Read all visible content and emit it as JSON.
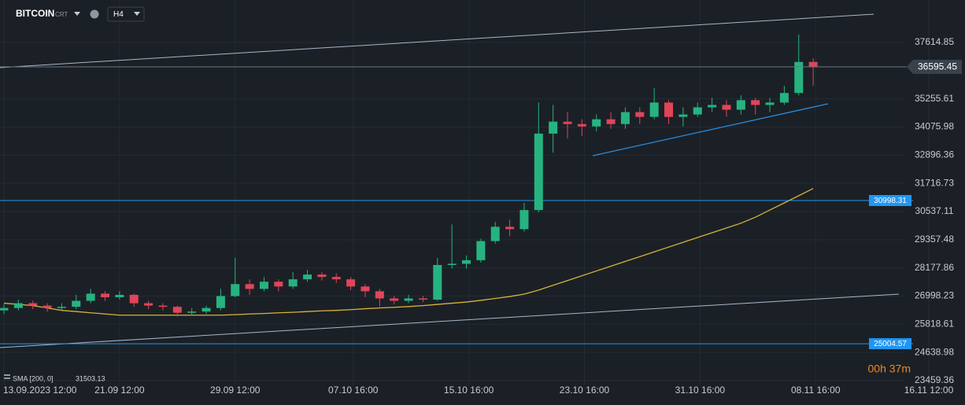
{
  "chart_data": {
    "type": "candlestick",
    "symbol": "BITCOIN",
    "symbol_suffix": "CRT",
    "timeframe": "H4",
    "timer": "00h 37m",
    "candles": {
      "x": [
        0,
        1,
        2,
        3,
        4,
        5,
        6,
        7,
        8,
        9,
        10,
        11,
        12,
        13,
        14,
        15,
        16,
        17,
        18,
        19,
        20,
        21,
        22,
        23,
        24,
        25,
        26,
        27,
        28,
        29,
        30,
        31,
        32,
        33,
        34,
        35,
        36,
        37,
        38,
        39,
        40,
        41,
        42,
        43,
        44,
        45,
        46,
        47,
        48,
        49,
        50,
        51,
        52,
        53,
        54,
        55,
        56
      ],
      "open": [
        26400,
        26500,
        26700,
        26600,
        26500,
        26550,
        26800,
        27100,
        26950,
        27050,
        26700,
        26600,
        26550,
        26300,
        26350,
        26500,
        27000,
        27500,
        27300,
        27600,
        27400,
        27700,
        27900,
        27800,
        27700,
        27400,
        27200,
        26900,
        26800,
        26900,
        26850,
        28300,
        28350,
        28500,
        29300,
        29900,
        29800,
        30600,
        33800,
        34300,
        34200,
        34100,
        34400,
        34200,
        34700,
        34500,
        35100,
        34500,
        34600,
        34900,
        35000,
        34800,
        35200,
        35000,
        35100,
        35500,
        36800
      ],
      "high": [
        26650,
        26850,
        26800,
        26700,
        26700,
        27050,
        27300,
        27200,
        27200,
        27100,
        26800,
        26700,
        26600,
        26500,
        26600,
        27300,
        28600,
        27700,
        27800,
        27700,
        28000,
        28100,
        28000,
        27950,
        27800,
        27500,
        27300,
        27000,
        27050,
        27000,
        28600,
        30000,
        28700,
        29400,
        30100,
        30200,
        30900,
        35100,
        35000,
        34700,
        34400,
        34600,
        34700,
        34900,
        34900,
        35700,
        35200,
        34900,
        35100,
        35300,
        35200,
        35400,
        35300,
        35300,
        35800,
        37950,
        36950
      ],
      "low": [
        26250,
        26400,
        26450,
        26350,
        26400,
        26450,
        26700,
        26800,
        26850,
        26550,
        26450,
        26400,
        26150,
        26200,
        26250,
        26400,
        26950,
        27050,
        27200,
        27200,
        27300,
        27600,
        27650,
        27550,
        27250,
        26950,
        26550,
        26650,
        26700,
        26750,
        26800,
        28150,
        28150,
        28400,
        29200,
        29500,
        29700,
        30500,
        33000,
        33600,
        33700,
        33900,
        34000,
        34000,
        34200,
        34400,
        34200,
        34100,
        34500,
        34700,
        34500,
        34600,
        34600,
        34700,
        35000,
        35400,
        35800
      ],
      "close": [
        26500,
        26700,
        26600,
        26500,
        26550,
        26800,
        27100,
        26950,
        27050,
        26700,
        26600,
        26550,
        26300,
        26350,
        26500,
        27000,
        27500,
        27300,
        27600,
        27400,
        27700,
        27900,
        27800,
        27700,
        27400,
        27200,
        26900,
        26800,
        26900,
        26850,
        28300,
        28350,
        28500,
        29300,
        29900,
        29800,
        30600,
        33800,
        34300,
        34200,
        34100,
        34400,
        34200,
        34700,
        34500,
        35100,
        34500,
        34600,
        34900,
        35000,
        34800,
        35200,
        35000,
        35100,
        35500,
        36800,
        36595.45
      ],
      "up_color": "#26b380",
      "down_color": "#e0455a"
    },
    "sma": {
      "name": "SMA [200, 0]",
      "color": "#d6b33a",
      "values": [
        26700,
        26650,
        26600,
        26500,
        26400,
        26350,
        26300,
        26250,
        26200,
        26200,
        26200,
        26200,
        26200,
        26200,
        26200,
        26200,
        26220,
        26250,
        26270,
        26300,
        26320,
        26350,
        26380,
        26400,
        26430,
        26470,
        26500,
        26530,
        26560,
        26600,
        26650,
        26700,
        26750,
        26820,
        26900,
        26980,
        27080,
        27250,
        27450,
        27650,
        27850,
        28050,
        28250,
        28450,
        28650,
        28850,
        29050,
        29250,
        29450,
        29650,
        29850,
        30050,
        30300,
        30600,
        30900,
        31200,
        31503.13
      ]
    },
    "levels": [
      30998.31,
      25004.57
    ],
    "level_color": "#2196f3",
    "xlim": [
      0,
      64
    ],
    "xticks": [
      {
        "value": 0,
        "label": "13.09.2023  12:00"
      },
      {
        "value": 8,
        "label": "21.09  12:00"
      },
      {
        "value": 16,
        "label": "29.09  12:00"
      },
      {
        "value": 24.17,
        "label": "07.10  16:00"
      },
      {
        "value": 32.17,
        "label": "15.10  16:00"
      },
      {
        "value": 40.17,
        "label": "23.10  16:00"
      },
      {
        "value": 48.17,
        "label": "31.10  16:00"
      },
      {
        "value": 56.17,
        "label": "08.11  16:00"
      },
      {
        "value": 64,
        "label": "16.11  12:00"
      }
    ],
    "ylim": [
      23262,
      39393
    ],
    "yticks": [
      23459.36,
      24638.98,
      25818.61,
      26998.23,
      28177.86,
      29357.48,
      30537.11,
      31716.73,
      32896.36,
      34075.98,
      35255.61,
      37614.85
    ],
    "grid": true
  }
}
